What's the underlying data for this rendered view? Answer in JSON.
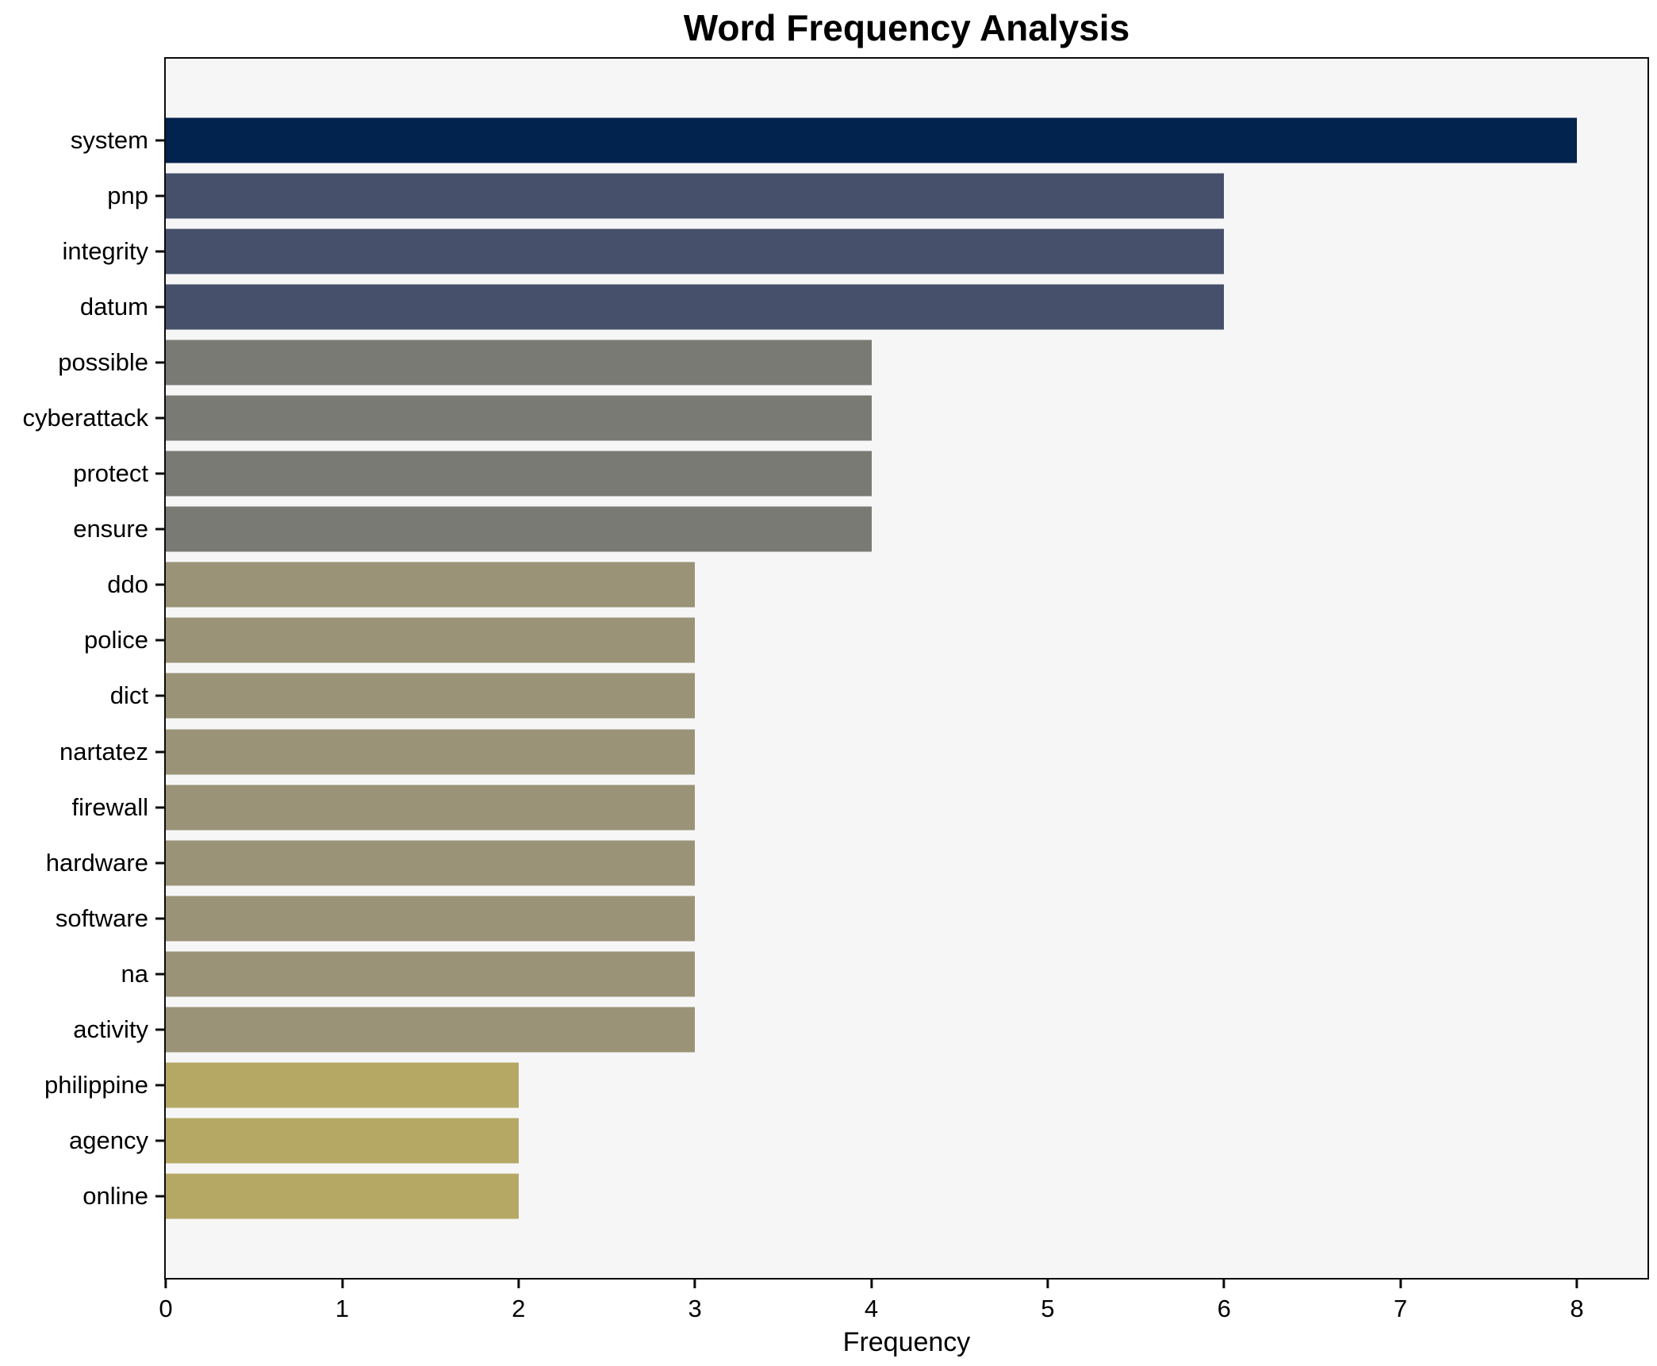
{
  "chart_data": {
    "type": "bar",
    "orientation": "horizontal",
    "title": "Word Frequency Analysis",
    "xlabel": "Frequency",
    "ylabel": "",
    "categories": [
      "system",
      "pnp",
      "integrity",
      "datum",
      "possible",
      "cyberattack",
      "protect",
      "ensure",
      "ddo",
      "police",
      "dict",
      "nartatez",
      "firewall",
      "hardware",
      "software",
      "na",
      "activity",
      "philippine",
      "agency",
      "online"
    ],
    "values": [
      8,
      6,
      6,
      6,
      4,
      4,
      4,
      4,
      3,
      3,
      3,
      3,
      3,
      3,
      3,
      3,
      3,
      2,
      2,
      2
    ],
    "bar_colors": [
      "#02234e",
      "#46506b",
      "#46506b",
      "#46506b",
      "#7a7a75",
      "#7a7a75",
      "#7a7a75",
      "#7a7a75",
      "#9a9377",
      "#9a9377",
      "#9a9377",
      "#9a9377",
      "#9a9377",
      "#9a9377",
      "#9a9377",
      "#9a9377",
      "#9a9377",
      "#b5a865",
      "#b5a865",
      "#b5a865"
    ],
    "colormap": "cividis",
    "xlim": [
      0,
      8.4
    ],
    "xticks": [
      0,
      1,
      2,
      3,
      4,
      5,
      6,
      7,
      8
    ],
    "grid": false,
    "legend": "none",
    "plot_background": "#f7f6f7",
    "figure_background": "#ffffff",
    "spine_color": "#0c0c0c"
  }
}
